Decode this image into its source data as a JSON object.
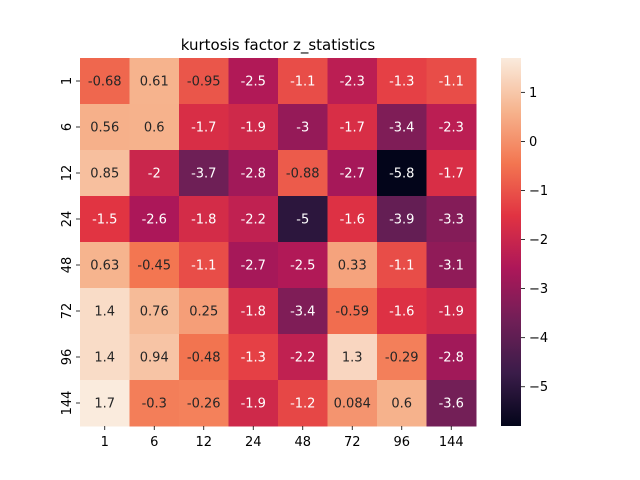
{
  "chart_data": {
    "type": "heatmap",
    "title": "kurtosis factor z_statistics",
    "xlabel": "",
    "ylabel": "",
    "x_categories": [
      "1",
      "6",
      "12",
      "24",
      "48",
      "72",
      "96",
      "144"
    ],
    "y_categories": [
      "1",
      "6",
      "12",
      "24",
      "48",
      "72",
      "96",
      "144"
    ],
    "values": [
      [
        -0.68,
        0.61,
        -0.95,
        -2.5,
        -1.1,
        -2.3,
        -1.3,
        -1.1
      ],
      [
        0.56,
        0.6,
        -1.7,
        -1.9,
        -3,
        -1.7,
        -3.4,
        -2.3
      ],
      [
        0.85,
        -2,
        -3.7,
        -2.8,
        -0.88,
        -2.7,
        -5.8,
        -1.7
      ],
      [
        -1.5,
        -2.6,
        -1.8,
        -2.2,
        -5,
        -1.6,
        -3.9,
        -3.3
      ],
      [
        0.63,
        -0.45,
        -1.1,
        -2.7,
        -2.5,
        0.33,
        -1.1,
        -3.1
      ],
      [
        1.4,
        0.76,
        0.25,
        -1.8,
        -3.4,
        -0.59,
        -1.6,
        -1.9
      ],
      [
        1.4,
        0.94,
        -0.48,
        -1.3,
        -2.2,
        1.3,
        -0.29,
        -2.8
      ],
      [
        1.7,
        -0.3,
        -0.26,
        -1.9,
        -1.2,
        0.084,
        0.6,
        -3.6
      ]
    ],
    "labels": [
      [
        "-0.68",
        "0.61",
        "-0.95",
        "-2.5",
        "-1.1",
        "-2.3",
        "-1.3",
        "-1.1"
      ],
      [
        "0.56",
        "0.6",
        "-1.7",
        "-1.9",
        "-3",
        "-1.7",
        "-3.4",
        "-2.3"
      ],
      [
        "0.85",
        "-2",
        "-3.7",
        "-2.8",
        "-0.88",
        "-2.7",
        "-5.8",
        "-1.7"
      ],
      [
        "-1.5",
        "-2.6",
        "-1.8",
        "-2.2",
        "-5",
        "-1.6",
        "-3.9",
        "-3.3"
      ],
      [
        "0.63",
        "-0.45",
        "-1.1",
        "-2.7",
        "-2.5",
        "0.33",
        "-1.1",
        "-3.1"
      ],
      [
        "1.4",
        "0.76",
        "0.25",
        "-1.8",
        "-3.4",
        "-0.59",
        "-1.6",
        "-1.9"
      ],
      [
        "1.4",
        "0.94",
        "-0.48",
        "-1.3",
        "-2.2",
        "1.3",
        "-0.29",
        "-2.8"
      ],
      [
        "1.7",
        "-0.3",
        "-0.26",
        "-1.9",
        "-1.2",
        "0.084",
        "0.6",
        "-3.6"
      ]
    ],
    "colorbar": {
      "vmin": -5.8,
      "vmax": 1.7,
      "ticks": [
        1,
        0,
        -1,
        -2,
        -3,
        -4,
        -5
      ],
      "tick_labels": [
        "1",
        "0",
        "−1",
        "−2",
        "−3",
        "−4",
        "−5"
      ],
      "colormap": "rocket"
    },
    "colormap_stops": [
      "#03051a",
      "#3a1c49",
      "#701f57",
      "#ad1759",
      "#e13342",
      "#f37651",
      "#f6b48e",
      "#faebdd"
    ]
  }
}
